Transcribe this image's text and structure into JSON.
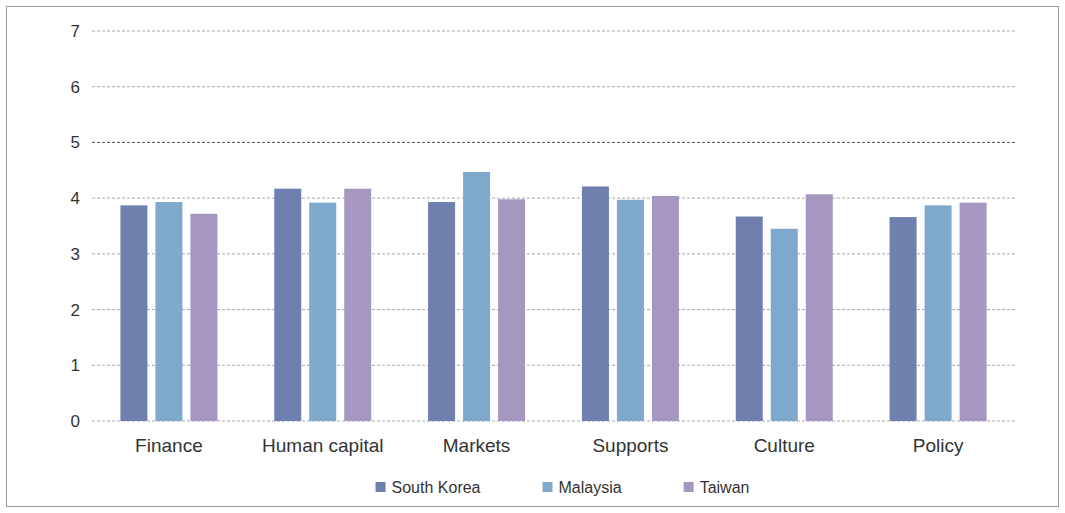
{
  "chart_data": {
    "type": "bar",
    "categories": [
      "Finance",
      "Human capital",
      "Markets",
      "Supports",
      "Culture",
      "Policy"
    ],
    "series": [
      {
        "name": "South Korea",
        "color": "#6f7fae",
        "values": [
          3.87,
          4.17,
          3.93,
          4.21,
          3.67,
          3.66
        ]
      },
      {
        "name": "Malaysia",
        "color": "#7ea9cd",
        "values": [
          3.93,
          3.92,
          4.47,
          3.97,
          3.45,
          3.87
        ]
      },
      {
        "name": "Taiwan",
        "color": "#a597bf",
        "values": [
          3.72,
          4.17,
          3.98,
          4.04,
          4.07,
          3.92
        ]
      }
    ],
    "ylim": [
      0,
      7
    ],
    "yticks": [
      0,
      1,
      2,
      3,
      4,
      5,
      6,
      7
    ],
    "grid": true,
    "legend": "bottom"
  }
}
